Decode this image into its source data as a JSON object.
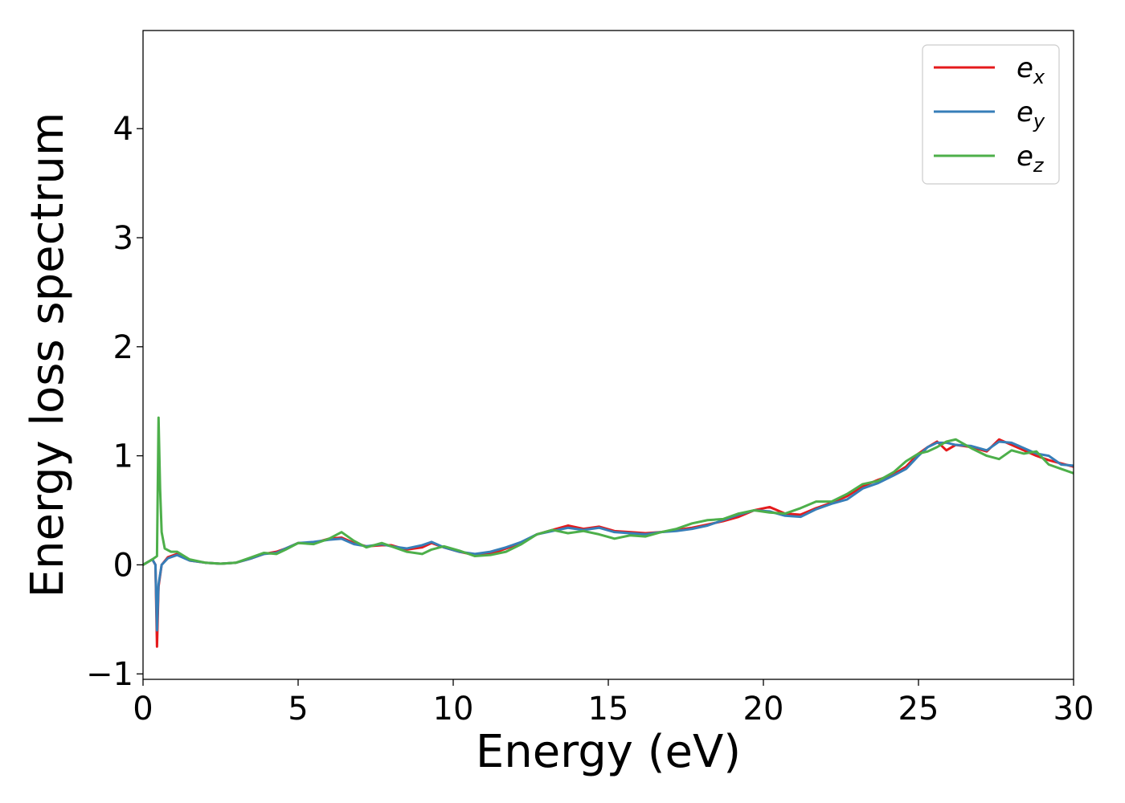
{
  "chart_data": {
    "type": "line",
    "title": "",
    "xlabel": "Energy (eV)",
    "ylabel": "Energy loss spectrum",
    "xlim": [
      0,
      30
    ],
    "ylim": [
      -1.05,
      4.9
    ],
    "xticks": [
      0,
      5,
      10,
      15,
      20,
      25,
      30
    ],
    "yticks": [
      -1,
      0,
      1,
      2,
      3,
      4
    ],
    "xtick_labels": [
      "0",
      "5",
      "10",
      "15",
      "20",
      "25",
      "30"
    ],
    "ytick_labels": [
      "−1",
      "0",
      "1",
      "2",
      "3",
      "4"
    ],
    "grid": false,
    "legend_position": "top-right",
    "series": [
      {
        "name": "e_x",
        "label_base": "e",
        "label_sub": "x",
        "color": "#e41a1c",
        "points": [
          [
            0,
            0
          ],
          [
            0.3,
            0.05
          ],
          [
            0.4,
            0.0
          ],
          [
            0.45,
            -0.75
          ],
          [
            0.5,
            -0.2
          ],
          [
            0.6,
            0.0
          ],
          [
            0.8,
            0.07
          ],
          [
            1.1,
            0.1
          ],
          [
            1.5,
            0.04
          ],
          [
            2,
            0.02
          ],
          [
            2.5,
            0.01
          ],
          [
            3,
            0.02
          ],
          [
            3.5,
            0.06
          ],
          [
            3.9,
            0.1
          ],
          [
            4.3,
            0.12
          ],
          [
            4.6,
            0.15
          ],
          [
            5,
            0.2
          ],
          [
            5.5,
            0.2
          ],
          [
            6,
            0.24
          ],
          [
            6.4,
            0.25
          ],
          [
            6.8,
            0.2
          ],
          [
            7.2,
            0.17
          ],
          [
            7.7,
            0.18
          ],
          [
            8,
            0.18
          ],
          [
            8.5,
            0.14
          ],
          [
            9,
            0.16
          ],
          [
            9.3,
            0.2
          ],
          [
            9.7,
            0.16
          ],
          [
            10.2,
            0.12
          ],
          [
            10.7,
            0.09
          ],
          [
            11.2,
            0.1
          ],
          [
            11.7,
            0.15
          ],
          [
            12.2,
            0.2
          ],
          [
            12.7,
            0.28
          ],
          [
            13.2,
            0.32
          ],
          [
            13.7,
            0.36
          ],
          [
            14.2,
            0.33
          ],
          [
            14.7,
            0.35
          ],
          [
            15.2,
            0.31
          ],
          [
            15.7,
            0.3
          ],
          [
            16.2,
            0.29
          ],
          [
            16.7,
            0.3
          ],
          [
            17.2,
            0.32
          ],
          [
            17.7,
            0.34
          ],
          [
            18.2,
            0.37
          ],
          [
            18.7,
            0.4
          ],
          [
            19.2,
            0.44
          ],
          [
            19.7,
            0.5
          ],
          [
            20.2,
            0.53
          ],
          [
            20.7,
            0.47
          ],
          [
            21.2,
            0.46
          ],
          [
            21.7,
            0.52
          ],
          [
            22.2,
            0.57
          ],
          [
            22.7,
            0.63
          ],
          [
            23.2,
            0.72
          ],
          [
            23.7,
            0.78
          ],
          [
            24.2,
            0.83
          ],
          [
            24.6,
            0.9
          ],
          [
            25.0,
            1.02
          ],
          [
            25.3,
            1.08
          ],
          [
            25.6,
            1.13
          ],
          [
            25.9,
            1.05
          ],
          [
            26.2,
            1.1
          ],
          [
            26.7,
            1.08
          ],
          [
            27.2,
            1.04
          ],
          [
            27.6,
            1.15
          ],
          [
            28.0,
            1.1
          ],
          [
            28.4,
            1.05
          ],
          [
            28.8,
            1.0
          ],
          [
            29.2,
            0.96
          ],
          [
            29.6,
            0.93
          ],
          [
            30,
            0.9
          ]
        ]
      },
      {
        "name": "e_y",
        "label_base": "e",
        "label_sub": "y",
        "color": "#377eb8",
        "points": [
          [
            0,
            0
          ],
          [
            0.3,
            0.05
          ],
          [
            0.4,
            0.0
          ],
          [
            0.45,
            -0.6
          ],
          [
            0.5,
            -0.18
          ],
          [
            0.6,
            0.0
          ],
          [
            0.8,
            0.06
          ],
          [
            1.1,
            0.09
          ],
          [
            1.5,
            0.04
          ],
          [
            2,
            0.02
          ],
          [
            2.5,
            0.01
          ],
          [
            3,
            0.02
          ],
          [
            3.5,
            0.06
          ],
          [
            3.9,
            0.1
          ],
          [
            4.3,
            0.11
          ],
          [
            4.6,
            0.15
          ],
          [
            5,
            0.2
          ],
          [
            5.5,
            0.21
          ],
          [
            6,
            0.23
          ],
          [
            6.4,
            0.24
          ],
          [
            6.8,
            0.19
          ],
          [
            7.2,
            0.17
          ],
          [
            7.7,
            0.19
          ],
          [
            8,
            0.17
          ],
          [
            8.5,
            0.15
          ],
          [
            9,
            0.18
          ],
          [
            9.3,
            0.21
          ],
          [
            9.7,
            0.16
          ],
          [
            10.2,
            0.12
          ],
          [
            10.7,
            0.1
          ],
          [
            11.2,
            0.12
          ],
          [
            11.7,
            0.16
          ],
          [
            12.2,
            0.21
          ],
          [
            12.7,
            0.28
          ],
          [
            13.2,
            0.31
          ],
          [
            13.7,
            0.34
          ],
          [
            14.2,
            0.32
          ],
          [
            14.7,
            0.34
          ],
          [
            15.2,
            0.3
          ],
          [
            15.7,
            0.29
          ],
          [
            16.2,
            0.28
          ],
          [
            16.7,
            0.3
          ],
          [
            17.2,
            0.31
          ],
          [
            17.7,
            0.33
          ],
          [
            18.2,
            0.36
          ],
          [
            18.7,
            0.41
          ],
          [
            19.2,
            0.46
          ],
          [
            19.7,
            0.5
          ],
          [
            20.2,
            0.49
          ],
          [
            20.7,
            0.45
          ],
          [
            21.2,
            0.44
          ],
          [
            21.7,
            0.51
          ],
          [
            22.2,
            0.56
          ],
          [
            22.7,
            0.6
          ],
          [
            23.2,
            0.7
          ],
          [
            23.7,
            0.75
          ],
          [
            24.2,
            0.82
          ],
          [
            24.6,
            0.88
          ],
          [
            25.0,
            1.0
          ],
          [
            25.3,
            1.08
          ],
          [
            25.6,
            1.12
          ],
          [
            25.9,
            1.12
          ],
          [
            26.2,
            1.1
          ],
          [
            26.7,
            1.09
          ],
          [
            27.2,
            1.05
          ],
          [
            27.6,
            1.13
          ],
          [
            28.0,
            1.12
          ],
          [
            28.4,
            1.07
          ],
          [
            28.8,
            1.02
          ],
          [
            29.2,
            1.0
          ],
          [
            29.6,
            0.92
          ],
          [
            30,
            0.91
          ]
        ]
      },
      {
        "name": "e_z",
        "label_base": "e",
        "label_sub": "z",
        "color": "#4daf4a",
        "points": [
          [
            0,
            0
          ],
          [
            0.3,
            0.05
          ],
          [
            0.45,
            0.08
          ],
          [
            0.5,
            1.35
          ],
          [
            0.55,
            0.7
          ],
          [
            0.6,
            0.3
          ],
          [
            0.7,
            0.15
          ],
          [
            0.9,
            0.12
          ],
          [
            1.1,
            0.12
          ],
          [
            1.5,
            0.05
          ],
          [
            2,
            0.02
          ],
          [
            2.5,
            0.01
          ],
          [
            3,
            0.02
          ],
          [
            3.5,
            0.07
          ],
          [
            3.9,
            0.11
          ],
          [
            4.3,
            0.1
          ],
          [
            4.6,
            0.14
          ],
          [
            5,
            0.2
          ],
          [
            5.5,
            0.19
          ],
          [
            6,
            0.24
          ],
          [
            6.4,
            0.3
          ],
          [
            6.8,
            0.22
          ],
          [
            7.2,
            0.16
          ],
          [
            7.7,
            0.2
          ],
          [
            8,
            0.17
          ],
          [
            8.5,
            0.12
          ],
          [
            9,
            0.1
          ],
          [
            9.3,
            0.14
          ],
          [
            9.7,
            0.17
          ],
          [
            10.2,
            0.13
          ],
          [
            10.7,
            0.08
          ],
          [
            11.2,
            0.09
          ],
          [
            11.7,
            0.12
          ],
          [
            12.2,
            0.19
          ],
          [
            12.7,
            0.28
          ],
          [
            13.2,
            0.32
          ],
          [
            13.7,
            0.29
          ],
          [
            14.2,
            0.31
          ],
          [
            14.7,
            0.28
          ],
          [
            15.2,
            0.24
          ],
          [
            15.7,
            0.27
          ],
          [
            16.2,
            0.26
          ],
          [
            16.7,
            0.3
          ],
          [
            17.2,
            0.33
          ],
          [
            17.7,
            0.38
          ],
          [
            18.2,
            0.41
          ],
          [
            18.7,
            0.42
          ],
          [
            19.2,
            0.47
          ],
          [
            19.7,
            0.5
          ],
          [
            20.2,
            0.48
          ],
          [
            20.7,
            0.47
          ],
          [
            21.2,
            0.52
          ],
          [
            21.7,
            0.58
          ],
          [
            22.2,
            0.58
          ],
          [
            22.7,
            0.65
          ],
          [
            23.2,
            0.74
          ],
          [
            23.7,
            0.77
          ],
          [
            24.2,
            0.85
          ],
          [
            24.6,
            0.95
          ],
          [
            25.0,
            1.02
          ],
          [
            25.3,
            1.04
          ],
          [
            25.6,
            1.08
          ],
          [
            25.9,
            1.13
          ],
          [
            26.2,
            1.15
          ],
          [
            26.7,
            1.07
          ],
          [
            27.2,
            1.0
          ],
          [
            27.6,
            0.97
          ],
          [
            28.0,
            1.05
          ],
          [
            28.4,
            1.02
          ],
          [
            28.8,
            1.04
          ],
          [
            29.2,
            0.92
          ],
          [
            29.6,
            0.88
          ],
          [
            30,
            0.84
          ]
        ]
      }
    ]
  }
}
